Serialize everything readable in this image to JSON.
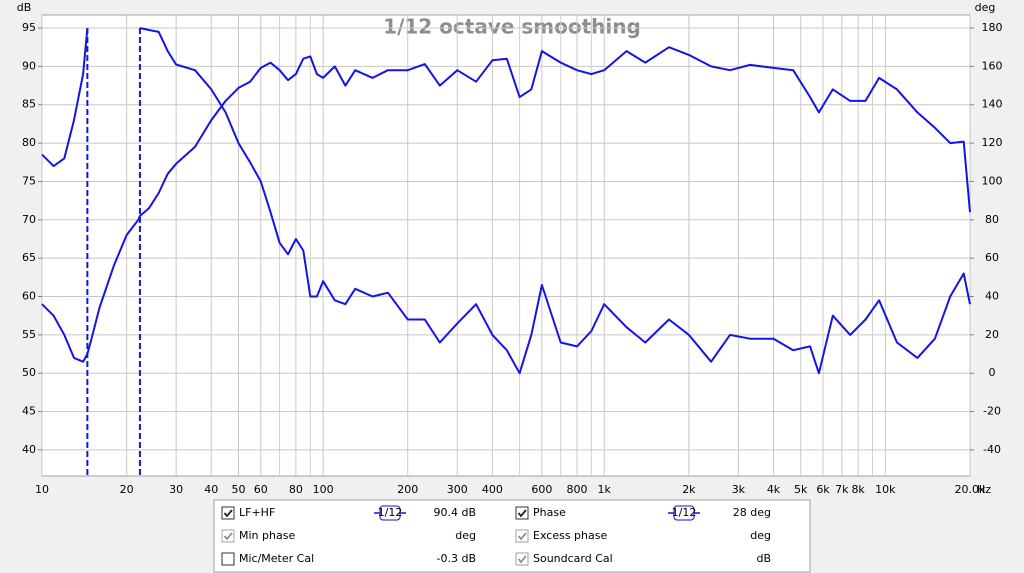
{
  "chart_data": {
    "type": "line",
    "title": "1/12 octave smoothing",
    "ylabel": "dB",
    "y2label": "deg",
    "xunit": "Hz",
    "xscale": "log",
    "xlim": [
      10,
      20000
    ],
    "xticks": [
      10,
      20,
      30,
      40,
      50,
      60,
      80,
      100,
      200,
      300,
      400,
      600,
      800,
      {
        "value": 1000,
        "label": "1k"
      },
      {
        "value": 2000,
        "label": "2k"
      },
      {
        "value": 3000,
        "label": "3k"
      },
      {
        "value": 4000,
        "label": "4k"
      },
      {
        "value": 5000,
        "label": "5k"
      },
      {
        "value": 6000,
        "label": "6k"
      },
      {
        "value": 7000,
        "label": "7k"
      },
      {
        "value": 8000,
        "label": "8k"
      },
      {
        "value": 10000,
        "label": "10k"
      },
      {
        "value": 20000,
        "label": "20.0k"
      }
    ],
    "xgrid_minor": [
      70,
      90,
      500,
      700,
      900,
      9000
    ],
    "ylim": [
      36.6,
      96.7
    ],
    "yticks": [
      40,
      45,
      50,
      55,
      60,
      65,
      70,
      75,
      80,
      85,
      90,
      95
    ],
    "y2lim": [
      -53.6,
      186.8
    ],
    "y2ticks": [
      -40,
      -20,
      0,
      20,
      40,
      60,
      80,
      100,
      120,
      140,
      160,
      180
    ],
    "grid": true,
    "x": [
      10,
      11,
      12,
      13,
      14,
      14.5,
      15,
      16,
      18,
      20,
      22,
      22.3,
      24,
      26,
      28,
      30,
      35,
      40,
      45,
      50,
      55,
      60,
      65,
      70,
      75,
      80,
      85,
      90,
      95,
      100,
      110,
      120,
      130,
      150,
      170,
      200,
      230,
      260,
      300,
      350,
      400,
      450,
      500,
      550,
      600,
      700,
      800,
      900,
      1000,
      1200,
      1400,
      1700,
      2000,
      2400,
      2800,
      3300,
      4000,
      4700,
      5400,
      5800,
      6500,
      7500,
      8500,
      9500,
      11000,
      13000,
      15000,
      17000,
      19000,
      20000
    ],
    "series": [
      {
        "name": "LF+HF",
        "color": "#1414e6",
        "axis": "y",
        "values": [
          59,
          57.5,
          55,
          52,
          51.5,
          52.5,
          54.5,
          58.5,
          64,
          68,
          70,
          70.5,
          71.5,
          73.5,
          76,
          77.3,
          79.5,
          83,
          85.5,
          87.2,
          88,
          89.8,
          90.5,
          89.5,
          88.2,
          89,
          91,
          91.3,
          89,
          88.5,
          90,
          87.5,
          89.5,
          88.5,
          89.5,
          89.5,
          90.3,
          87.5,
          89.5,
          88,
          90.8,
          91,
          86,
          87,
          92,
          90.5,
          89.5,
          89,
          89.5,
          92,
          90.5,
          92.5,
          91.5,
          90,
          89.5,
          90.2,
          89.8,
          89.5,
          86,
          84,
          87,
          85.5,
          85.5,
          88.5,
          87,
          84,
          82,
          80,
          80.2,
          71
        ]
      },
      {
        "name": "Phase",
        "color": "#1414e6",
        "axis": "y2",
        "values": [
          114,
          108,
          112,
          132,
          156,
          180,
          null,
          null,
          null,
          null,
          null,
          180,
          179,
          178,
          168,
          161,
          158,
          148,
          136,
          120,
          110,
          100,
          84,
          68,
          62,
          70,
          64,
          40,
          40,
          48,
          38,
          36,
          44,
          40,
          42,
          28,
          28,
          16,
          26,
          36,
          20,
          12,
          0,
          20,
          46,
          16,
          14,
          22,
          36,
          24,
          16,
          28,
          20,
          6,
          20,
          18,
          18,
          12,
          14,
          0,
          30,
          20,
          28,
          38,
          16,
          8,
          18,
          40,
          52,
          36
        ]
      }
    ]
  },
  "legend_panel": {
    "items": [
      {
        "smoothing": "1/12",
        "value": "90.4 dB",
        "checked": true,
        "enabled": true
      },
      {
        "smoothing": "1/12",
        "value": "28 deg",
        "checked": true,
        "enabled": true
      },
      {
        "label": "Min phase",
        "value": "deg",
        "checked": true,
        "enabled": false
      },
      {
        "label": "Excess phase",
        "value": "deg",
        "checked": true,
        "enabled": false
      },
      {
        "label": "Mic/Meter Cal",
        "value": "-0.3 dB",
        "checked": false,
        "enabled": true
      },
      {
        "label": "Soundcard Cal",
        "value": "dB",
        "checked": true,
        "enabled": false
      }
    ]
  }
}
